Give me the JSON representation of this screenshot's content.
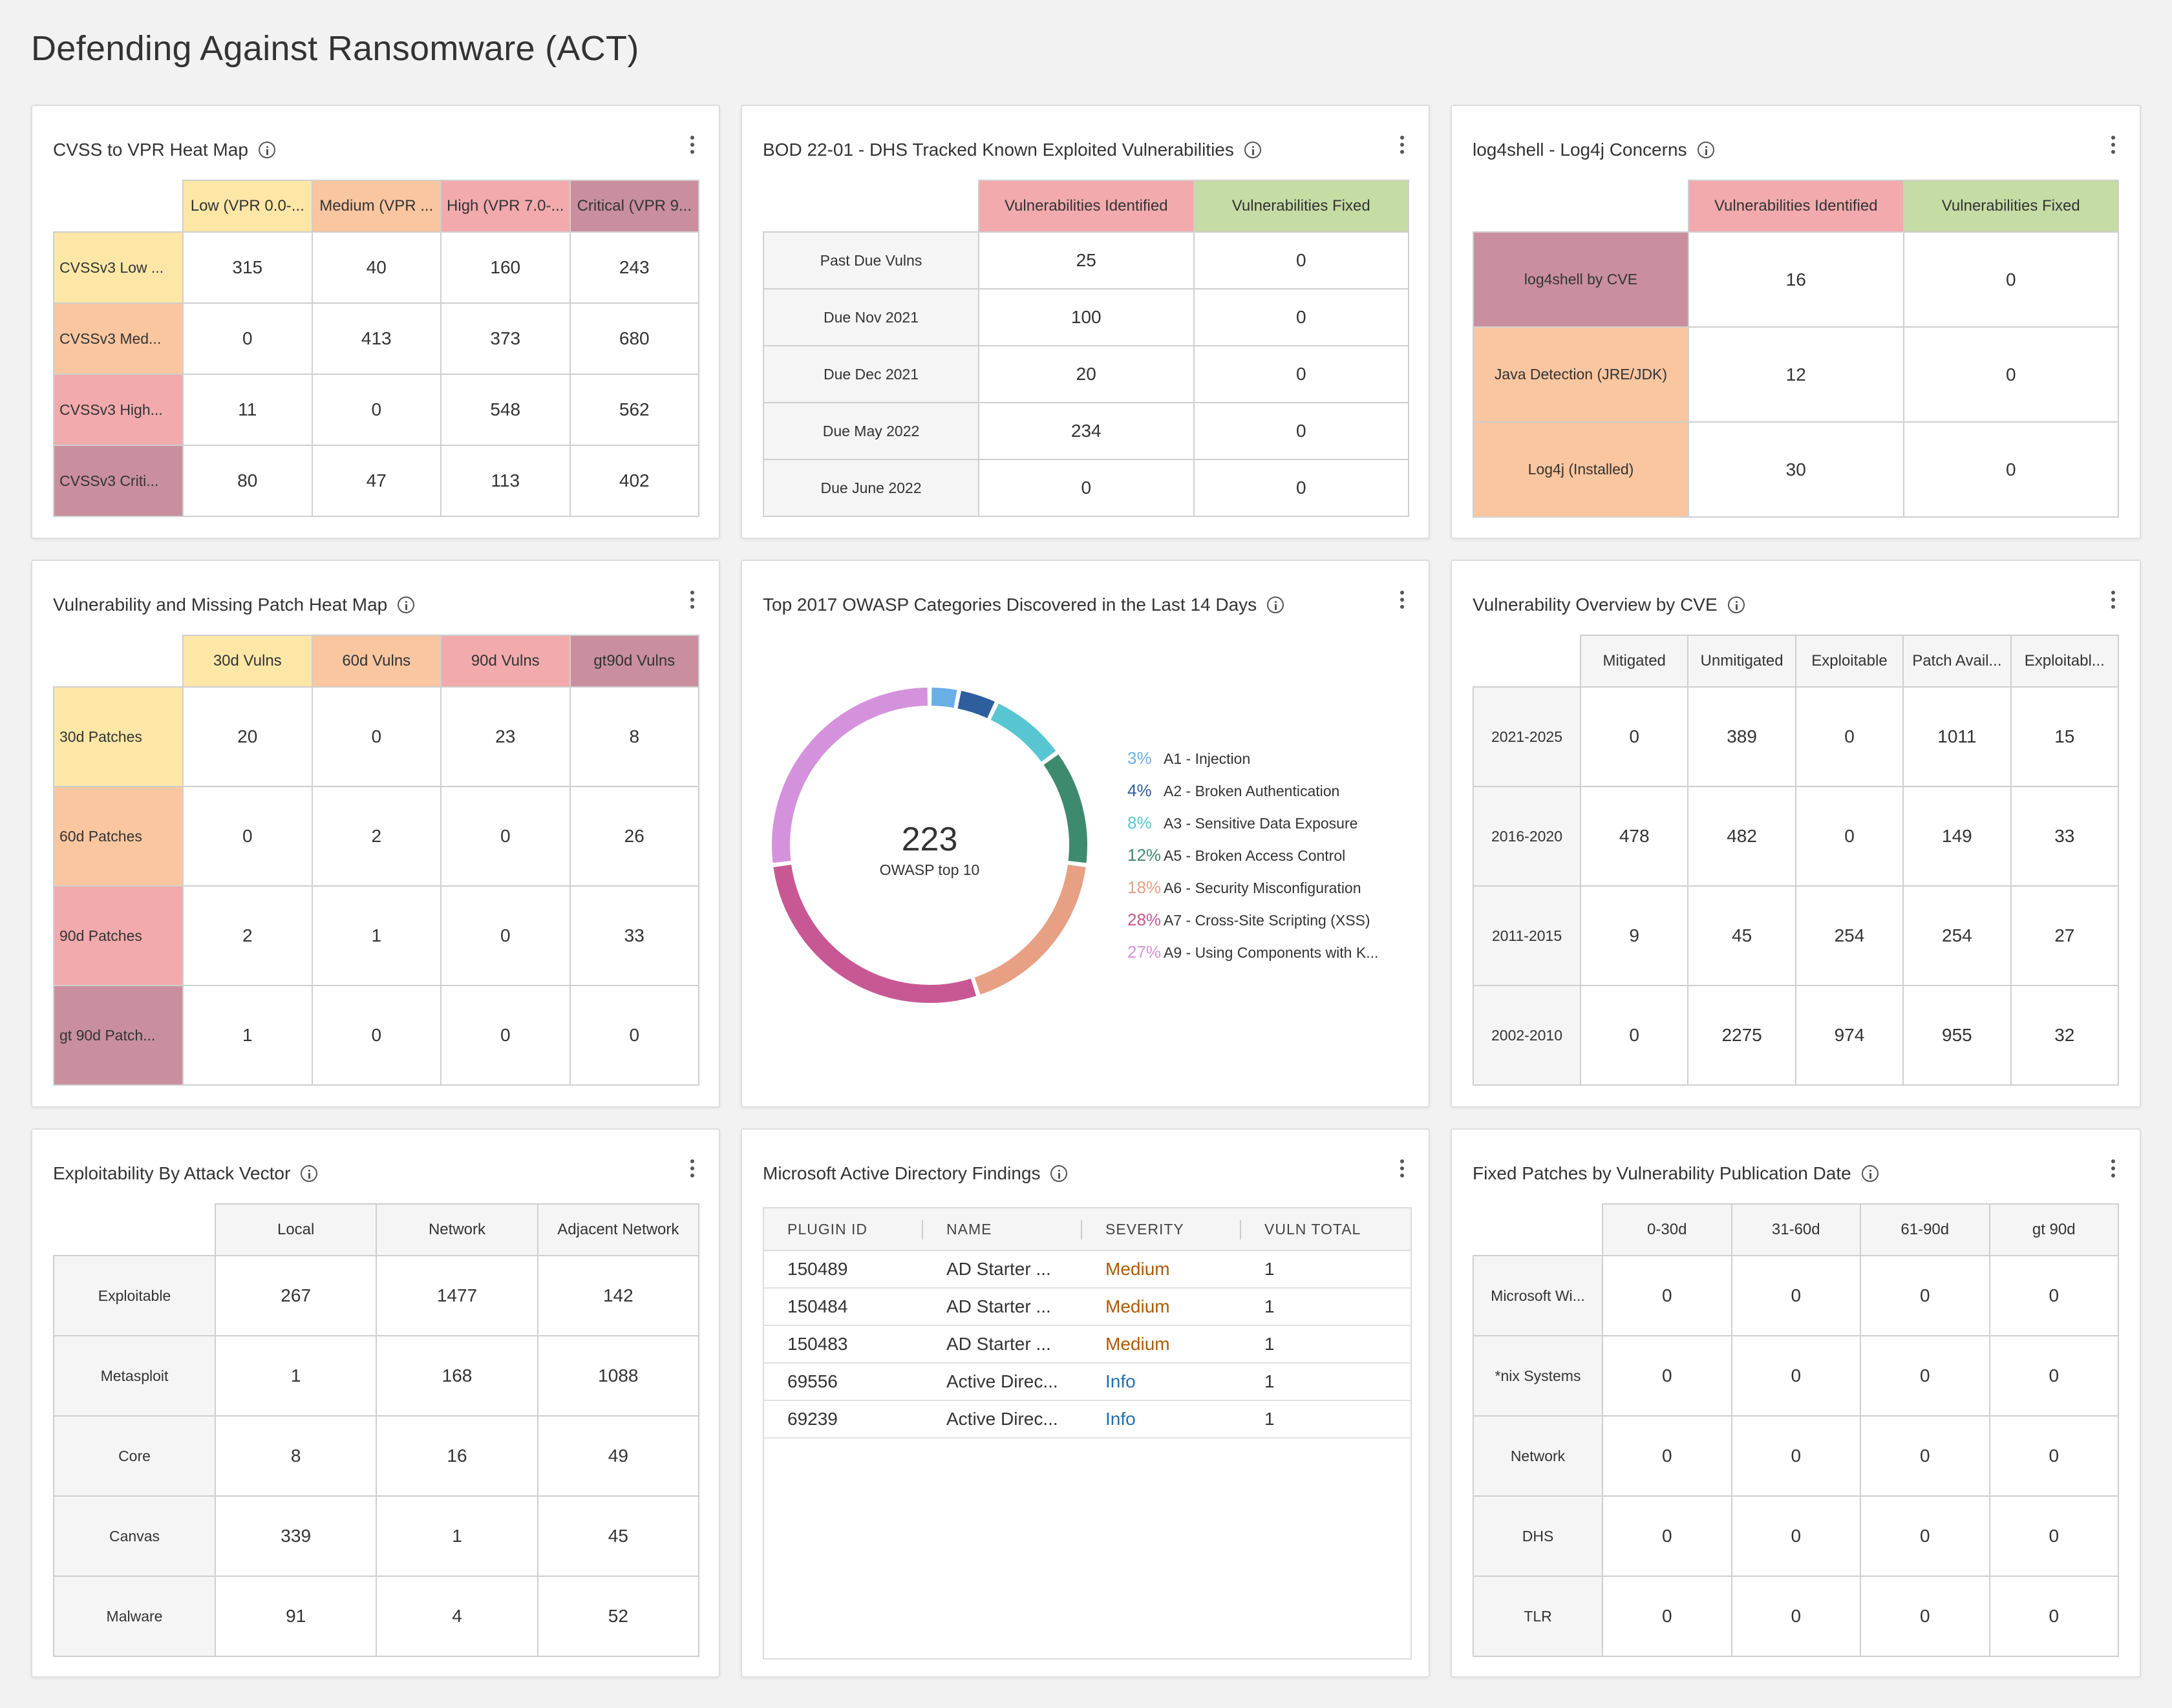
{
  "page": {
    "title": "Defending Against Ransomware (ACT)"
  },
  "colors": {
    "low": "#fde7a7",
    "medium": "#f9c6a0",
    "high": "#f2aaad",
    "critical": "#c98f9e",
    "fixed": "#c5dca5",
    "severity_medium": "#b05a00",
    "severity_info": "#1f6fb2"
  },
  "cvss_vpr": {
    "title": "CVSS to VPR Heat Map",
    "columns": [
      "Low (VPR 0.0-...",
      "Medium (VPR ...",
      "High (VPR 7.0-...",
      "Critical (VPR 9..."
    ],
    "rows": [
      {
        "label": "CVSSv3 Low ...",
        "values": [
          "315",
          "40",
          "160",
          "243"
        ]
      },
      {
        "label": "CVSSv3 Med...",
        "values": [
          "0",
          "413",
          "373",
          "680"
        ]
      },
      {
        "label": "CVSSv3 High...",
        "values": [
          "11",
          "0",
          "548",
          "562"
        ]
      },
      {
        "label": "CVSSv3 Criti...",
        "values": [
          "80",
          "47",
          "113",
          "402"
        ]
      }
    ]
  },
  "bod": {
    "title": "BOD 22-01 - DHS Tracked Known Exploited Vulnerabilities",
    "columns": [
      "Vulnerabilities Identified",
      "Vulnerabilities Fixed"
    ],
    "rows": [
      {
        "label": "Past Due Vulns",
        "values": [
          "25",
          "0"
        ]
      },
      {
        "label": "Due Nov 2021",
        "values": [
          "100",
          "0"
        ]
      },
      {
        "label": "Due Dec 2021",
        "values": [
          "20",
          "0"
        ]
      },
      {
        "label": "Due May 2022",
        "values": [
          "234",
          "0"
        ]
      },
      {
        "label": "Due June 2022",
        "values": [
          "0",
          "0"
        ]
      }
    ]
  },
  "log4j": {
    "title": "log4shell - Log4j Concerns",
    "columns": [
      "Vulnerabilities Identified",
      "Vulnerabilities Fixed"
    ],
    "rows": [
      {
        "label": "log4shell by CVE",
        "values": [
          "16",
          "0"
        ]
      },
      {
        "label": "Java Detection (JRE/JDK)",
        "values": [
          "12",
          "0"
        ]
      },
      {
        "label": "Log4j (Installed)",
        "values": [
          "30",
          "0"
        ]
      }
    ]
  },
  "patch_heat": {
    "title": "Vulnerability and Missing Patch Heat Map",
    "columns": [
      "30d Vulns",
      "60d Vulns",
      "90d Vulns",
      "gt90d Vulns"
    ],
    "rows": [
      {
        "label": "30d Patches",
        "values": [
          "20",
          "0",
          "23",
          "8"
        ]
      },
      {
        "label": "60d Patches",
        "values": [
          "0",
          "2",
          "0",
          "26"
        ]
      },
      {
        "label": "90d Patches",
        "values": [
          "2",
          "1",
          "0",
          "33"
        ]
      },
      {
        "label": "gt 90d Patch...",
        "values": [
          "1",
          "0",
          "0",
          "0"
        ]
      }
    ]
  },
  "owasp": {
    "title": "Top 2017 OWASP Categories Discovered in the Last 14 Days",
    "center_value": "223",
    "center_label": "OWASP top 10"
  },
  "chart_data": {
    "type": "pie",
    "categories": [
      "A1 - Injection",
      "A2 - Broken Authentication",
      "A3 - Sensitive Data Exposure",
      "A5 - Broken Access Control",
      "A6 - Security Misconfiguration",
      "A7 - Cross-Site Scripting (XSS)",
      "A9 - Using Components with K..."
    ],
    "values": [
      3,
      4,
      8,
      12,
      18,
      28,
      27
    ],
    "labels": [
      "3%",
      "4%",
      "8%",
      "12%",
      "18%",
      "28%",
      "27%"
    ],
    "colors": [
      "#6aaee6",
      "#2f5e9e",
      "#58c6d2",
      "#3e8a6e",
      "#e8a084",
      "#c85893",
      "#d592dc"
    ],
    "legend_position": "right",
    "total": 223
  },
  "cve_overview": {
    "title": "Vulnerability Overview by CVE",
    "columns": [
      "Mitigated",
      "Unmitigated",
      "Exploitable",
      "Patch Avail...",
      "Exploitabl..."
    ],
    "rows": [
      {
        "label": "2021-2025",
        "values": [
          "0",
          "389",
          "0",
          "1011",
          "15"
        ]
      },
      {
        "label": "2016-2020",
        "values": [
          "478",
          "482",
          "0",
          "149",
          "33"
        ]
      },
      {
        "label": "2011-2015",
        "values": [
          "9",
          "45",
          "254",
          "254",
          "27"
        ]
      },
      {
        "label": "2002-2010",
        "values": [
          "0",
          "2275",
          "974",
          "955",
          "32"
        ]
      }
    ]
  },
  "attack_vector": {
    "title": "Exploitability By Attack Vector",
    "columns": [
      "Local",
      "Network",
      "Adjacent Network"
    ],
    "rows": [
      {
        "label": "Exploitable",
        "values": [
          "267",
          "1477",
          "142"
        ]
      },
      {
        "label": "Metasploit",
        "values": [
          "1",
          "168",
          "1088"
        ]
      },
      {
        "label": "Core",
        "values": [
          "8",
          "16",
          "49"
        ]
      },
      {
        "label": "Canvas",
        "values": [
          "339",
          "1",
          "45"
        ]
      },
      {
        "label": "Malware",
        "values": [
          "91",
          "4",
          "52"
        ]
      }
    ]
  },
  "ad_findings": {
    "title": "Microsoft Active Directory Findings",
    "columns": [
      "PLUGIN ID",
      "NAME",
      "SEVERITY",
      "VULN TOTAL"
    ],
    "rows": [
      {
        "plugin_id": "150489",
        "name": "AD Starter ...",
        "severity": "Medium",
        "total": "1"
      },
      {
        "plugin_id": "150484",
        "name": "AD Starter ...",
        "severity": "Medium",
        "total": "1"
      },
      {
        "plugin_id": "150483",
        "name": "AD Starter ...",
        "severity": "Medium",
        "total": "1"
      },
      {
        "plugin_id": "69556",
        "name": "Active Direc...",
        "severity": "Info",
        "total": "1"
      },
      {
        "plugin_id": "69239",
        "name": "Active Direc...",
        "severity": "Info",
        "total": "1"
      }
    ]
  },
  "fixed_patches": {
    "title": "Fixed Patches by Vulnerability Publication Date",
    "columns": [
      "0-30d",
      "31-60d",
      "61-90d",
      "gt 90d"
    ],
    "rows": [
      {
        "label": "Microsoft Wi...",
        "values": [
          "0",
          "0",
          "0",
          "0"
        ]
      },
      {
        "label": "*nix Systems",
        "values": [
          "0",
          "0",
          "0",
          "0"
        ]
      },
      {
        "label": "Network",
        "values": [
          "0",
          "0",
          "0",
          "0"
        ]
      },
      {
        "label": "DHS",
        "values": [
          "0",
          "0",
          "0",
          "0"
        ]
      },
      {
        "label": "TLR",
        "values": [
          "0",
          "0",
          "0",
          "0"
        ]
      }
    ]
  }
}
